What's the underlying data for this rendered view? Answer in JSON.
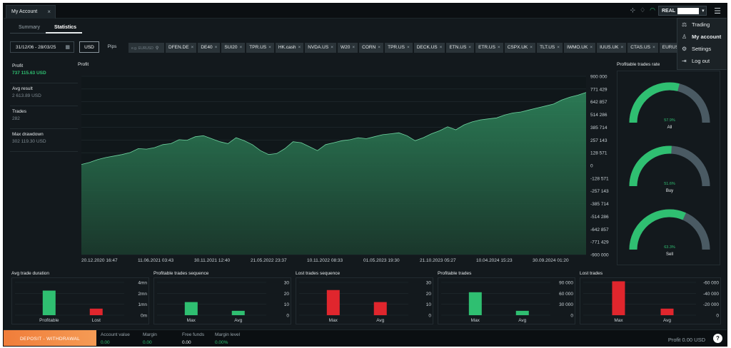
{
  "topbar": {
    "tab_label": "My Account",
    "tab_close": "×",
    "account_label": "REAL",
    "account_caret": "▾"
  },
  "menu": {
    "items": [
      {
        "label": "Trading",
        "icon": "scale-icon"
      },
      {
        "label": "My account",
        "icon": "user-icon"
      },
      {
        "label": "Settings",
        "icon": "gear-icon"
      },
      {
        "label": "Log out",
        "icon": "logout-icon"
      }
    ]
  },
  "subtabs": {
    "summary": "Summary",
    "statistics": "Statistics"
  },
  "filters": {
    "date_range": "31/12/06 - 28/03/25",
    "usd": "USD",
    "pips": "Pips",
    "search_placeholder": "e.g. EURUSD",
    "symbols": [
      "DFEN.DE",
      "DE40",
      "SUI20",
      "TPR.US",
      "HK.cash",
      "NVDA.US",
      "W20",
      "CORN",
      "TPR.US",
      "DECK.US",
      "ETN.US",
      "ETR.US",
      "CSPX.UK",
      "TLT.US",
      "IWMO.UK",
      "IUUS.UK",
      "CTAS.US",
      "EURUSD"
    ]
  },
  "stats": [
    {
      "label": "Profit",
      "value": "737 115.63 USD",
      "highlight": true
    },
    {
      "label": "Avg result",
      "value": "2 613.89 USD",
      "highlight": false
    },
    {
      "label": "Trades",
      "value": "282",
      "highlight": false
    },
    {
      "label": "Max drawdown",
      "value": "302 119.30 USD",
      "highlight": false
    }
  ],
  "chart_data": [
    {
      "type": "area",
      "title": "Profit",
      "x_tick_labels": [
        "20.12.2020 16:47",
        "11.06.2021 03:43",
        "30.11.2021 12:40",
        "21.05.2022 23:37",
        "10.11.2022 08:33",
        "01.05.2023 19:30",
        "21.10.2023 05:27",
        "10.04.2024 15:23",
        "30.09.2024 01:20"
      ],
      "y_tick_labels": [
        "900 000",
        "771 429",
        "642 857",
        "514 286",
        "385 714",
        "257 143",
        "128 571",
        "0",
        "-128 571",
        "-257 143",
        "-385 714",
        "-514 286",
        "-642 857",
        "-771 429",
        "-900 000"
      ],
      "ylim": [
        -900000,
        900000
      ],
      "y": [
        10000,
        30000,
        60000,
        80000,
        95000,
        110000,
        130000,
        170000,
        165000,
        180000,
        210000,
        220000,
        260000,
        255000,
        290000,
        300000,
        270000,
        240000,
        220000,
        280000,
        250000,
        210000,
        150000,
        110000,
        120000,
        170000,
        240000,
        230000,
        190000,
        150000,
        210000,
        230000,
        250000,
        260000,
        280000,
        270000,
        290000,
        310000,
        320000,
        330000,
        300000,
        250000,
        280000,
        320000,
        350000,
        390000,
        360000,
        410000,
        440000,
        460000,
        470000,
        480000,
        510000,
        530000,
        540000,
        560000,
        580000,
        600000,
        620000,
        660000,
        690000,
        710000,
        737115
      ]
    },
    {
      "type": "pie",
      "title": "Profitable trades rate",
      "series": [
        {
          "name": "All",
          "values": [
            57.9
          ],
          "label": "57.9%"
        },
        {
          "name": "Buy",
          "values": [
            51.6
          ],
          "label": "51.6%"
        },
        {
          "name": "Sell",
          "values": [
            63.3
          ],
          "label": "63.3%"
        }
      ]
    },
    {
      "type": "bar",
      "title": "Avg trade duration",
      "categories": [
        "Profitable",
        "Lost"
      ],
      "values": [
        45,
        12
      ],
      "y_tick_labels": [
        "4mn",
        "2mn",
        "1mn",
        "0m"
      ],
      "ylim": [
        0,
        60
      ]
    },
    {
      "type": "bar",
      "title": "Profitable trades sequence",
      "categories": [
        "Max",
        "Avg"
      ],
      "values": [
        12,
        4
      ],
      "y_tick_labels": [
        "30",
        "20",
        "10",
        "0"
      ],
      "ylim": [
        0,
        30
      ]
    },
    {
      "type": "bar",
      "title": "Lost trades sequence",
      "categories": [
        "Max",
        "Avg"
      ],
      "values": [
        23,
        12
      ],
      "y_tick_labels": [
        "30",
        "20",
        "10",
        "0"
      ],
      "ylim": [
        0,
        30
      ]
    },
    {
      "type": "bar",
      "title": "Profitable trades",
      "categories": [
        "Max",
        "Avg"
      ],
      "values": [
        63000,
        12000
      ],
      "y_tick_labels": [
        "90 000",
        "60 000",
        "30 000",
        "0"
      ],
      "ylim": [
        0,
        90000
      ]
    },
    {
      "type": "bar",
      "title": "Lost trades",
      "categories": [
        "Max",
        "Avg"
      ],
      "values": [
        -62000,
        -12000
      ],
      "y_tick_labels": [
        "-60 000",
        "-40 000",
        "-20 000",
        "0"
      ],
      "ylim": [
        0,
        -60000
      ]
    }
  ],
  "footer": {
    "deposit": "DEPOSIT - WITHDRAWAL",
    "items": [
      {
        "label": "Account value",
        "value": "0.00"
      },
      {
        "label": "Margin",
        "value": "0.00"
      },
      {
        "label": "Free funds",
        "value": "0.00"
      },
      {
        "label": "Margin level",
        "value": "0.00%"
      }
    ],
    "profit": "Profit 0.00 USD",
    "help": "?"
  },
  "colors": {
    "green": "#2fbf71",
    "red": "#e0262d",
    "gauge_bg": "#4a5a63",
    "accent_orange": "#f07d3a"
  }
}
